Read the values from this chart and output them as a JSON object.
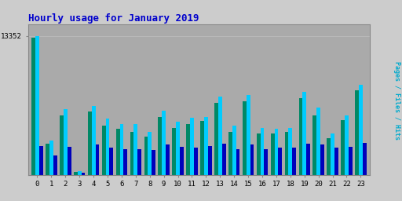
{
  "title": "Hourly usage for January 2019",
  "hours": [
    0,
    1,
    2,
    3,
    4,
    5,
    6,
    7,
    8,
    9,
    10,
    11,
    12,
    13,
    14,
    15,
    16,
    17,
    18,
    19,
    20,
    21,
    22,
    23
  ],
  "pages": [
    13200,
    3000,
    5700,
    300,
    6100,
    4700,
    4400,
    4100,
    3700,
    5600,
    4500,
    4900,
    5200,
    6900,
    4100,
    7100,
    4000,
    4000,
    4100,
    7400,
    5700,
    3500,
    5300,
    8100
  ],
  "files": [
    13352,
    3300,
    6300,
    370,
    6600,
    5400,
    4900,
    4900,
    4100,
    6200,
    5100,
    5500,
    5600,
    7500,
    4700,
    7700,
    4500,
    4400,
    4500,
    8000,
    6500,
    4000,
    5700,
    8700
  ],
  "hits": [
    2800,
    1900,
    2700,
    200,
    2900,
    2600,
    2500,
    2500,
    2400,
    2900,
    2700,
    2600,
    2800,
    3000,
    2500,
    2900,
    2500,
    2600,
    2600,
    3000,
    2900,
    2600,
    2700,
    3100
  ],
  "color_pages": "#008866",
  "color_files": "#00ccff",
  "color_hits": "#0000bb",
  "bg_color": "#cccccc",
  "plot_bg": "#aaaaaa",
  "title_color": "#0000cc",
  "ylabel_color": "#00aacc",
  "grid_color": "#bbbbbb",
  "ymax": 14500,
  "ytick_val": 13352,
  "ytick_label": "13352"
}
